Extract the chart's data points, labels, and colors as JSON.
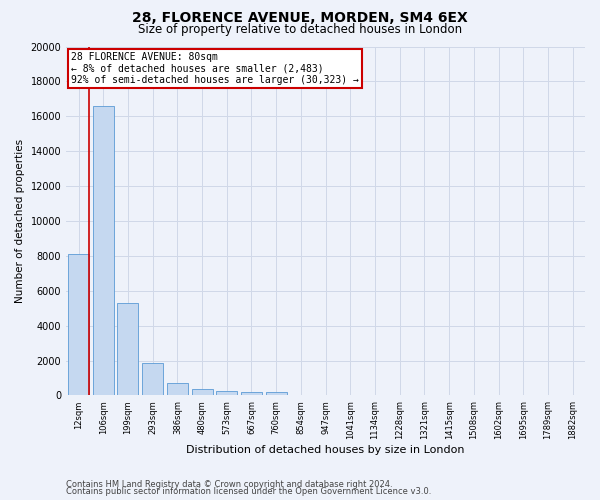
{
  "title_line1": "28, FLORENCE AVENUE, MORDEN, SM4 6EX",
  "title_line2": "Size of property relative to detached houses in London",
  "xlabel": "Distribution of detached houses by size in London",
  "ylabel": "Number of detached properties",
  "categories": [
    "12sqm",
    "106sqm",
    "199sqm",
    "293sqm",
    "386sqm",
    "480sqm",
    "573sqm",
    "667sqm",
    "760sqm",
    "854sqm",
    "947sqm",
    "1041sqm",
    "1134sqm",
    "1228sqm",
    "1321sqm",
    "1415sqm",
    "1508sqm",
    "1602sqm",
    "1695sqm",
    "1789sqm",
    "1882sqm"
  ],
  "values": [
    8100,
    16600,
    5300,
    1850,
    700,
    350,
    280,
    200,
    200,
    50,
    0,
    0,
    0,
    0,
    0,
    0,
    0,
    0,
    0,
    0,
    0
  ],
  "bar_color": "#c5d8f0",
  "bar_edge_color": "#5b9bd5",
  "grid_color": "#d0d8e8",
  "annotation_text": "28 FLORENCE AVENUE: 80sqm\n← 8% of detached houses are smaller (2,483)\n92% of semi-detached houses are larger (30,323) →",
  "annotation_box_color": "#ffffff",
  "annotation_box_edge": "#cc0000",
  "vline_color": "#cc0000",
  "vline_x_index": 0,
  "ylim": [
    0,
    20000
  ],
  "yticks": [
    0,
    2000,
    4000,
    6000,
    8000,
    10000,
    12000,
    14000,
    16000,
    18000,
    20000
  ],
  "footer_line1": "Contains HM Land Registry data © Crown copyright and database right 2024.",
  "footer_line2": "Contains public sector information licensed under the Open Government Licence v3.0.",
  "bg_color": "#eef2fa",
  "plot_bg_color": "#eef2fa",
  "title_fontsize": 10,
  "subtitle_fontsize": 8.5,
  "xlabel_fontsize": 8,
  "ylabel_fontsize": 7.5,
  "xtick_fontsize": 6,
  "ytick_fontsize": 7,
  "annotation_fontsize": 7,
  "footer_fontsize": 6
}
